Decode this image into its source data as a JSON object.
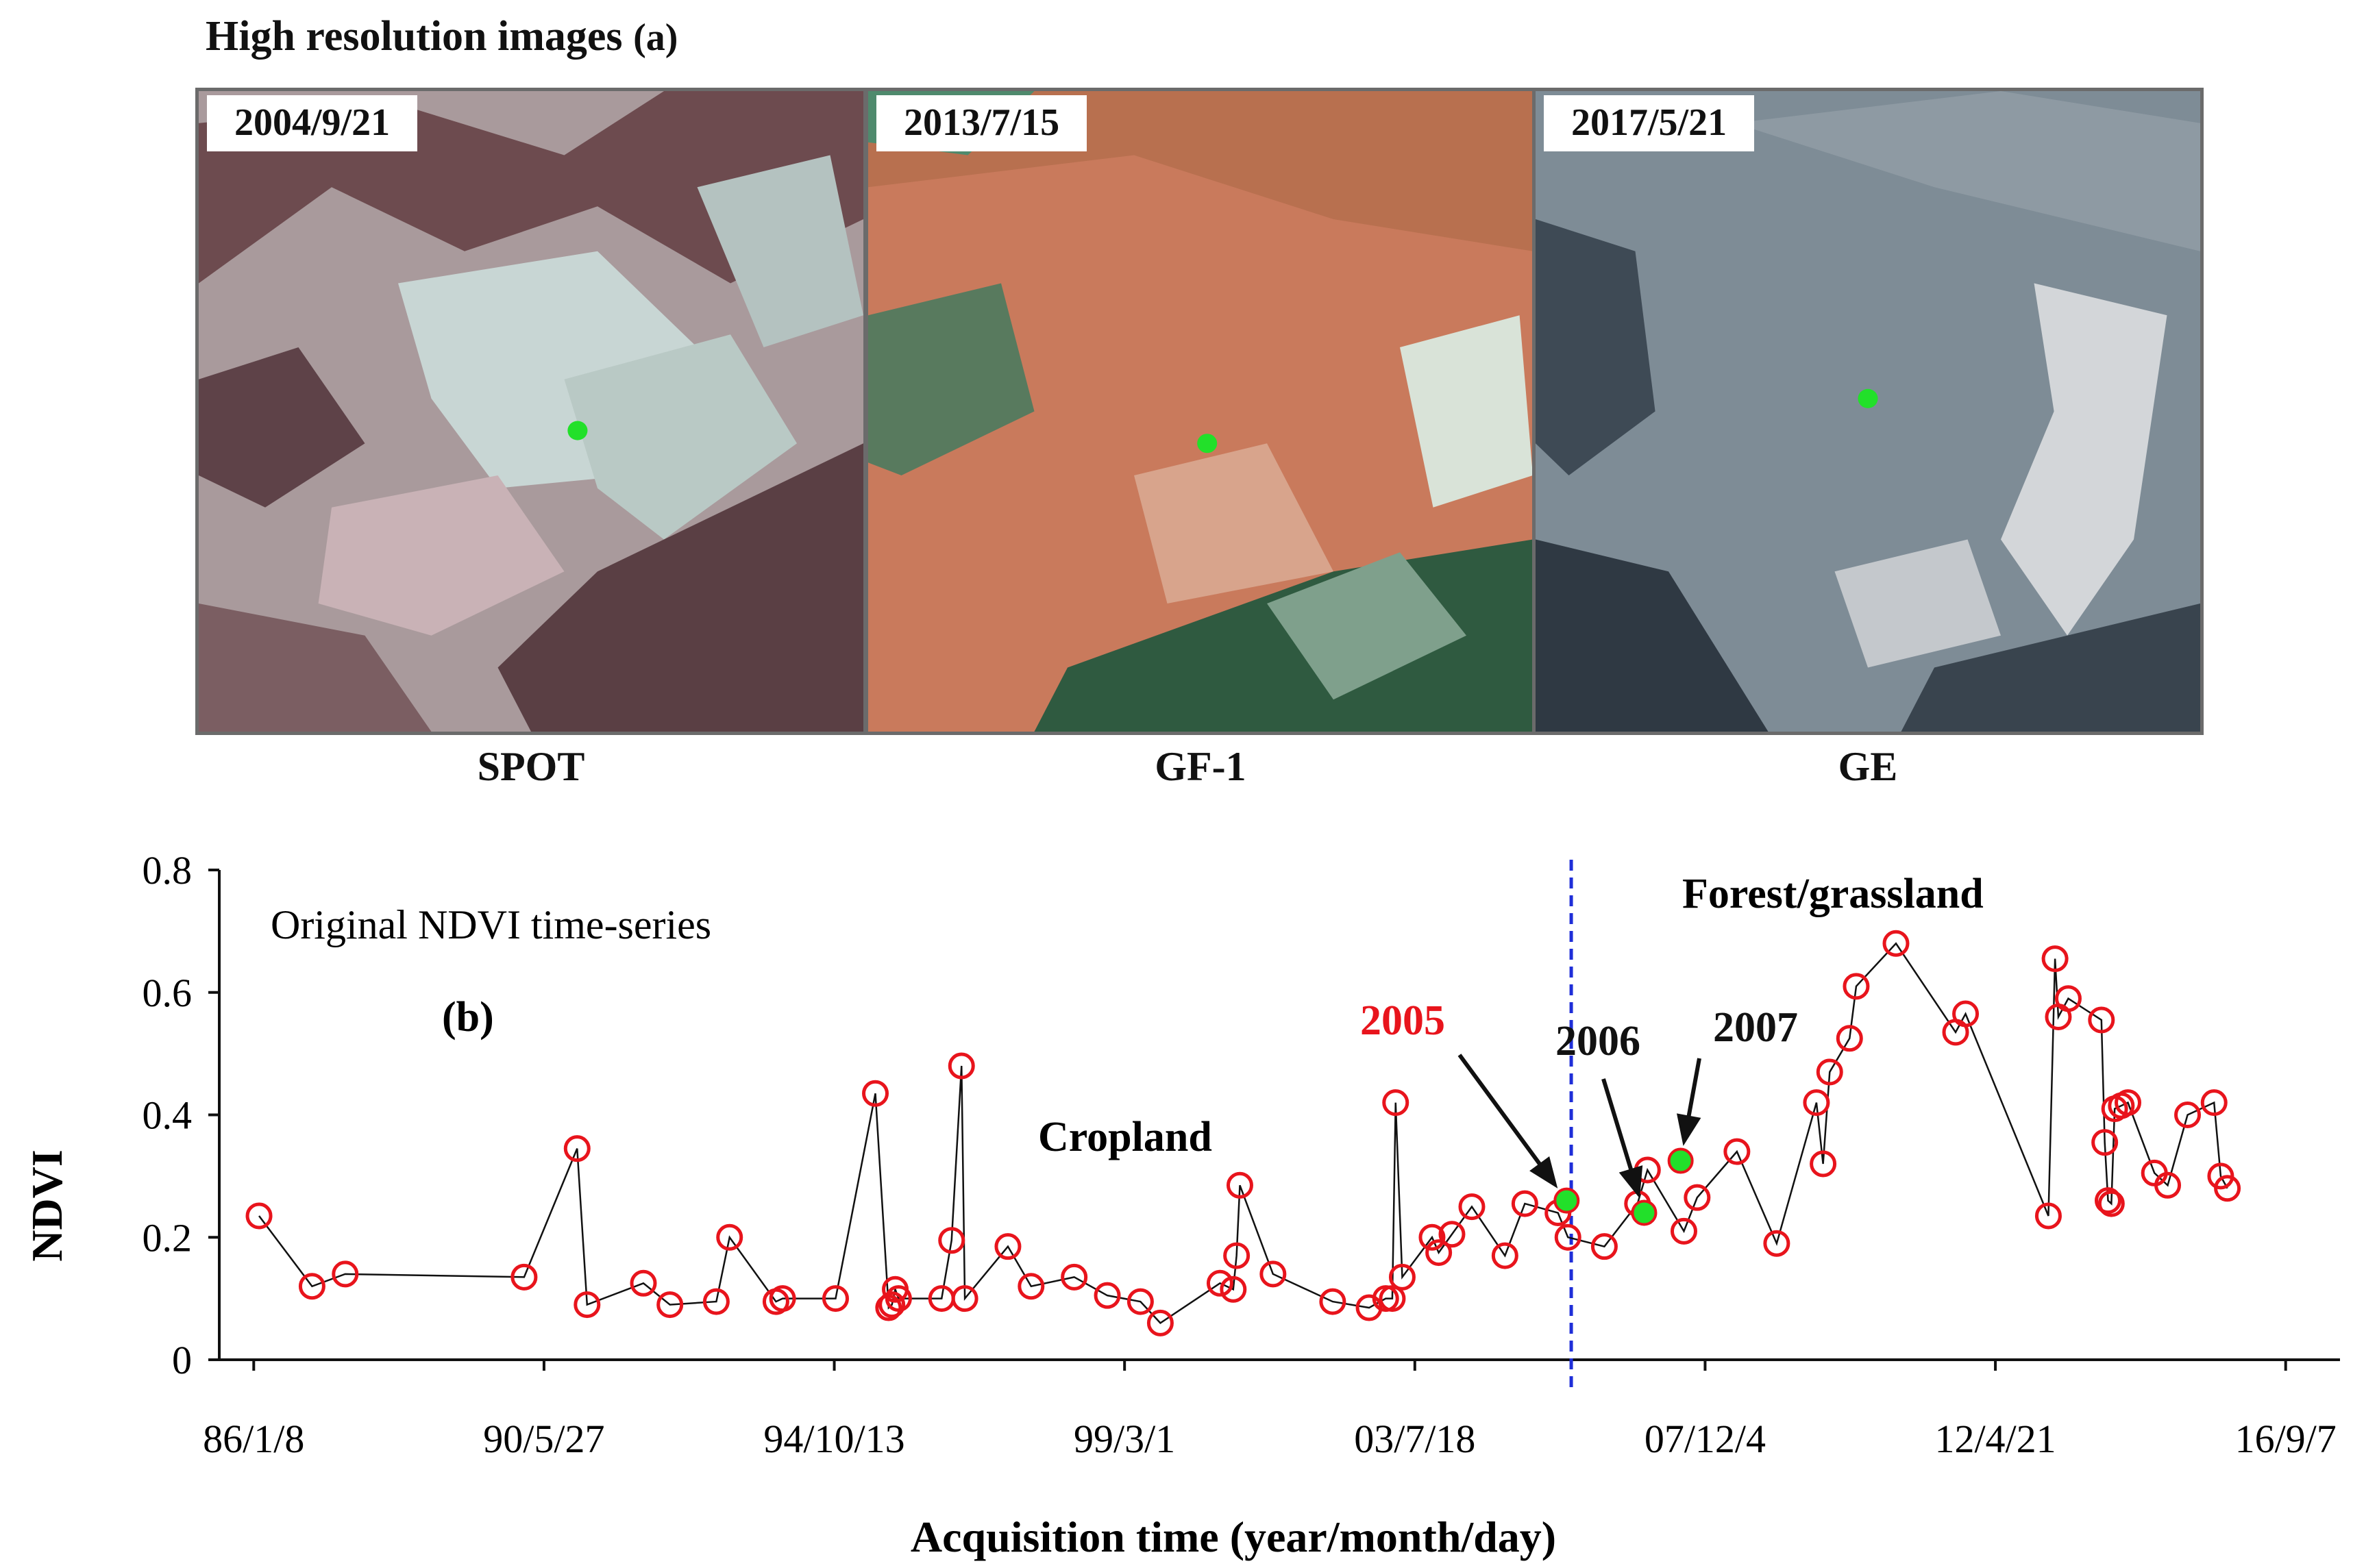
{
  "panel_a": {
    "title": "High resolution images",
    "label": "(a)",
    "images": [
      {
        "date": "2004/9/21",
        "sensor": "SPOT"
      },
      {
        "date": "2013/7/15",
        "sensor": "GF-1"
      },
      {
        "date": "2017/5/21",
        "sensor": "GE"
      }
    ],
    "marker_color": "#22e02a"
  },
  "chart_data": {
    "type": "line",
    "title": "Original NDVI time-series",
    "panel_label": "(b)",
    "xlabel": "Acquisition time (year/month/day)",
    "ylabel": "NDVI",
    "ylim": [
      0,
      0.8
    ],
    "yticks": [
      "0",
      "0.2",
      "0.4",
      "0.6",
      "0.8"
    ],
    "xlim": [
      1985.5,
      2017.5
    ],
    "xticks": [
      {
        "t": 1986.02,
        "label": "86/1/8"
      },
      {
        "t": 1990.4,
        "label": "90/5/27"
      },
      {
        "t": 1994.78,
        "label": "94/10/13"
      },
      {
        "t": 1999.16,
        "label": "99/3/1"
      },
      {
        "t": 2003.54,
        "label": "03/7/18"
      },
      {
        "t": 2007.92,
        "label": "07/12/4"
      },
      {
        "t": 2012.3,
        "label": "12/4/21"
      },
      {
        "t": 2016.68,
        "label": "16/9/7"
      }
    ],
    "change_year": 2005.9,
    "regions": {
      "before": "Cropland",
      "after": "Forest/grassland"
    },
    "highlights": [
      {
        "label": "2005",
        "t": 2005.83,
        "v": 0.26,
        "color": "#e8141c"
      },
      {
        "label": "2006",
        "t": 2007.0,
        "v": 0.24,
        "color": "#111111"
      },
      {
        "label": "2007",
        "t": 2007.55,
        "v": 0.325,
        "color": "#111111"
      }
    ],
    "series": [
      {
        "name": "NDVI",
        "x": [
          1986.1,
          1986.9,
          1987.4,
          1990.1,
          1990.9,
          1991.05,
          1991.9,
          1992.3,
          1993.0,
          1993.2,
          1993.9,
          1994.0,
          1994.8,
          1995.4,
          1995.6,
          1995.65,
          1995.7,
          1995.75,
          1996.4,
          1996.55,
          1996.7,
          1996.75,
          1997.4,
          1997.75,
          1998.4,
          1998.9,
          1999.4,
          1999.7,
          2000.6,
          2000.8,
          2000.85,
          2000.9,
          2001.4,
          2002.3,
          2002.85,
          2003.1,
          2003.2,
          2003.25,
          2003.35,
          2003.8,
          2003.9,
          2004.1,
          2004.4,
          2004.9,
          2005.2,
          2005.7,
          2005.85,
          2006.4,
          2006.9,
          2007.05,
          2007.6,
          2007.8,
          2008.4,
          2009.0,
          2009.6,
          2009.7,
          2009.8,
          2010.1,
          2010.2,
          2010.8,
          2011.7,
          2011.85,
          2013.1,
          2013.2,
          2013.25,
          2013.4,
          2013.9,
          2013.95,
          2014.0,
          2014.05,
          2014.1,
          2014.2,
          2014.3,
          2014.7,
          2014.9,
          2015.2,
          2015.6,
          2015.7,
          2015.8
        ],
        "values": [
          0.235,
          0.12,
          0.14,
          0.135,
          0.345,
          0.09,
          0.125,
          0.09,
          0.095,
          0.2,
          0.095,
          0.1,
          0.1,
          0.435,
          0.085,
          0.09,
          0.115,
          0.1,
          0.1,
          0.195,
          0.48,
          0.1,
          0.185,
          0.12,
          0.135,
          0.105,
          0.095,
          0.06,
          0.125,
          0.115,
          0.17,
          0.285,
          0.14,
          0.095,
          0.085,
          0.1,
          0.1,
          0.42,
          0.135,
          0.2,
          0.175,
          0.205,
          0.25,
          0.17,
          0.255,
          0.24,
          0.2,
          0.185,
          0.255,
          0.31,
          0.21,
          0.265,
          0.34,
          0.19,
          0.42,
          0.32,
          0.47,
          0.525,
          0.61,
          0.68,
          0.535,
          0.565,
          0.235,
          0.655,
          0.56,
          0.59,
          0.555,
          0.355,
          0.26,
          0.255,
          0.41,
          0.415,
          0.42,
          0.305,
          0.285,
          0.4,
          0.42,
          0.3,
          0.28
        ],
        "marker": "open-circle",
        "marker_color": "#e8141c",
        "line_color": "#111111"
      }
    ]
  }
}
